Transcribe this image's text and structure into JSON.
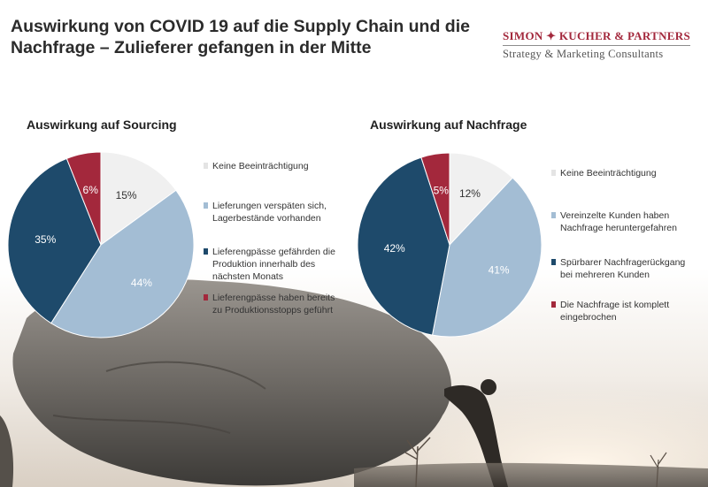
{
  "page": {
    "title": "Auswirkung von COVID 19 auf die Supply Chain und die Nachfrage – Zulieferer gefangen in der Mitte"
  },
  "logo": {
    "name": "SIMON ✦ KUCHER & PARTNERS",
    "tagline": "Strategy & Marketing Consultants",
    "color": "#a3283c"
  },
  "colors": {
    "light_gray": "#f0f0f0",
    "light_blue": "#a3bdd4",
    "dark_blue": "#1e4a6b",
    "red": "#a3283c"
  },
  "chart_data": [
    {
      "type": "pie",
      "title": "Auswirkung auf Sourcing",
      "slices": [
        {
          "label": "Keine Beeinträchtigung",
          "value": 15,
          "display": "15%",
          "color": "#f0f0f0"
        },
        {
          "label": "Lieferungen verspäten sich,\nLagerbestände vorhanden",
          "value": 44,
          "display": "44%",
          "color": "#a3bdd4"
        },
        {
          "label": "Lieferengpässe gefährden die\nProduktion innerhalb des\nnächsten Monats",
          "value": 35,
          "display": "35%",
          "color": "#1e4a6b"
        },
        {
          "label": "Lieferengpässe haben bereits\nzu Produktionsstopps geführt",
          "value": 6,
          "display": "6%",
          "color": "#a3283c"
        }
      ]
    },
    {
      "type": "pie",
      "title": "Auswirkung auf Nachfrage",
      "slices": [
        {
          "label": "Keine Beeinträchtigung",
          "value": 12,
          "display": "12%",
          "color": "#f0f0f0"
        },
        {
          "label": "Vereinzelte Kunden haben\nNachfrage heruntergefahren",
          "value": 41,
          "display": "41%",
          "color": "#a3bdd4"
        },
        {
          "label": "Spürbarer Nachfragerückgang\nbei mehreren Kunden",
          "value": 42,
          "display": "42%",
          "color": "#1e4a6b"
        },
        {
          "label": "Die Nachfrage ist komplett\neingebrochen",
          "value": 5,
          "display": "5%",
          "color": "#a3283c"
        }
      ]
    }
  ]
}
